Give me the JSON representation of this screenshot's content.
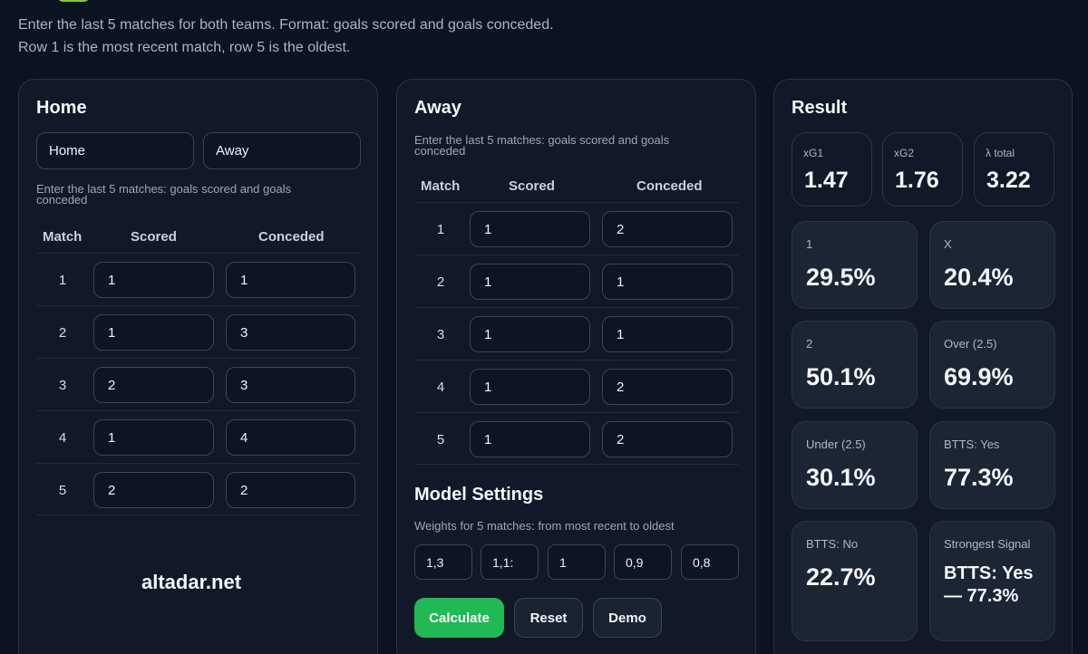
{
  "intro": {
    "line1": "Enter the last 5 matches for both teams. Format: goals scored and goals conceded.",
    "line2": "Row 1 is the most recent match, row 5 is the oldest."
  },
  "home": {
    "title": "Home",
    "team_names": [
      "Home",
      "Away"
    ],
    "instruction": "Enter the last 5 matches: goals scored and goals conceded",
    "columns": [
      "Match",
      "Scored",
      "Conceded"
    ],
    "rows": [
      {
        "match": "1",
        "scored": "1",
        "conceded": "1"
      },
      {
        "match": "2",
        "scored": "1",
        "conceded": "3"
      },
      {
        "match": "3",
        "scored": "2",
        "conceded": "3"
      },
      {
        "match": "4",
        "scored": "1",
        "conceded": "4"
      },
      {
        "match": "5",
        "scored": "2",
        "conceded": "2"
      }
    ],
    "brand": "altadar.net"
  },
  "away": {
    "title": "Away",
    "instruction": "Enter the last 5 matches: goals scored and goals conceded",
    "columns": [
      "Match",
      "Scored",
      "Conceded"
    ],
    "rows": [
      {
        "match": "1",
        "scored": "1",
        "conceded": "2"
      },
      {
        "match": "2",
        "scored": "1",
        "conceded": "1"
      },
      {
        "match": "3",
        "scored": "1",
        "conceded": "1"
      },
      {
        "match": "4",
        "scored": "1",
        "conceded": "2"
      },
      {
        "match": "5",
        "scored": "1",
        "conceded": "2"
      }
    ]
  },
  "settings": {
    "title": "Model Settings",
    "weights_label": "Weights for 5 matches: from most recent to oldest",
    "weights": [
      "1,3",
      "1,1:",
      "1",
      "0,9",
      "0,8"
    ],
    "buttons": {
      "calculate": "Calculate",
      "reset": "Reset",
      "demo": "Demo"
    }
  },
  "result": {
    "title": "Result",
    "metrics": [
      {
        "label": "xG1",
        "value": "1.47"
      },
      {
        "label": "xG2",
        "value": "1.76"
      },
      {
        "label": "λ total",
        "value": "3.22"
      }
    ],
    "cards": [
      {
        "label": "1",
        "value": "29.5%"
      },
      {
        "label": "X",
        "value": "20.4%"
      },
      {
        "label": "2",
        "value": "50.1%"
      },
      {
        "label": "Over (2.5)",
        "value": "69.9%"
      },
      {
        "label": "Under (2.5)",
        "value": "30.1%"
      },
      {
        "label": "BTTS: Yes",
        "value": "77.3%"
      },
      {
        "label": "BTTS: No",
        "value": "22.7%"
      },
      {
        "label": "Strongest Signal",
        "value": "BTTS: Yes — 77.3%"
      }
    ]
  },
  "colors": {
    "background": "#0b1220",
    "panel": "#111827",
    "primary_button": "#20b954",
    "accent": "#7bd21b"
  }
}
